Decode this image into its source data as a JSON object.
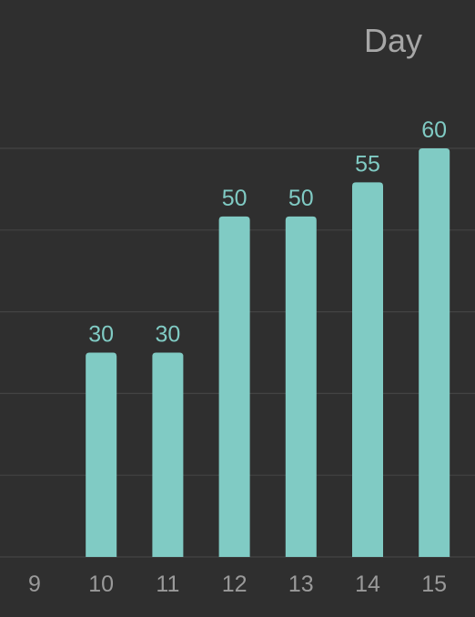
{
  "header": {
    "period_label": "Day"
  },
  "colors": {
    "background": "#2f2f2f",
    "bar": "#80cbc4",
    "grid": "#444444",
    "axis_text": "#9a9a9a",
    "value_text": "#80cbc4"
  },
  "chart_data": {
    "type": "bar",
    "categories": [
      "9",
      "10",
      "11",
      "12",
      "13",
      "14",
      "15"
    ],
    "values": [
      0,
      30,
      30,
      50,
      50,
      55,
      60
    ],
    "value_labels": [
      "",
      "30",
      "30",
      "50",
      "50",
      "55",
      "60"
    ],
    "title": "",
    "xlabel": "",
    "ylabel": "",
    "ylim": [
      0,
      60
    ],
    "grid": true,
    "gridline_values": [
      0,
      12,
      24,
      36,
      48,
      60
    ]
  }
}
